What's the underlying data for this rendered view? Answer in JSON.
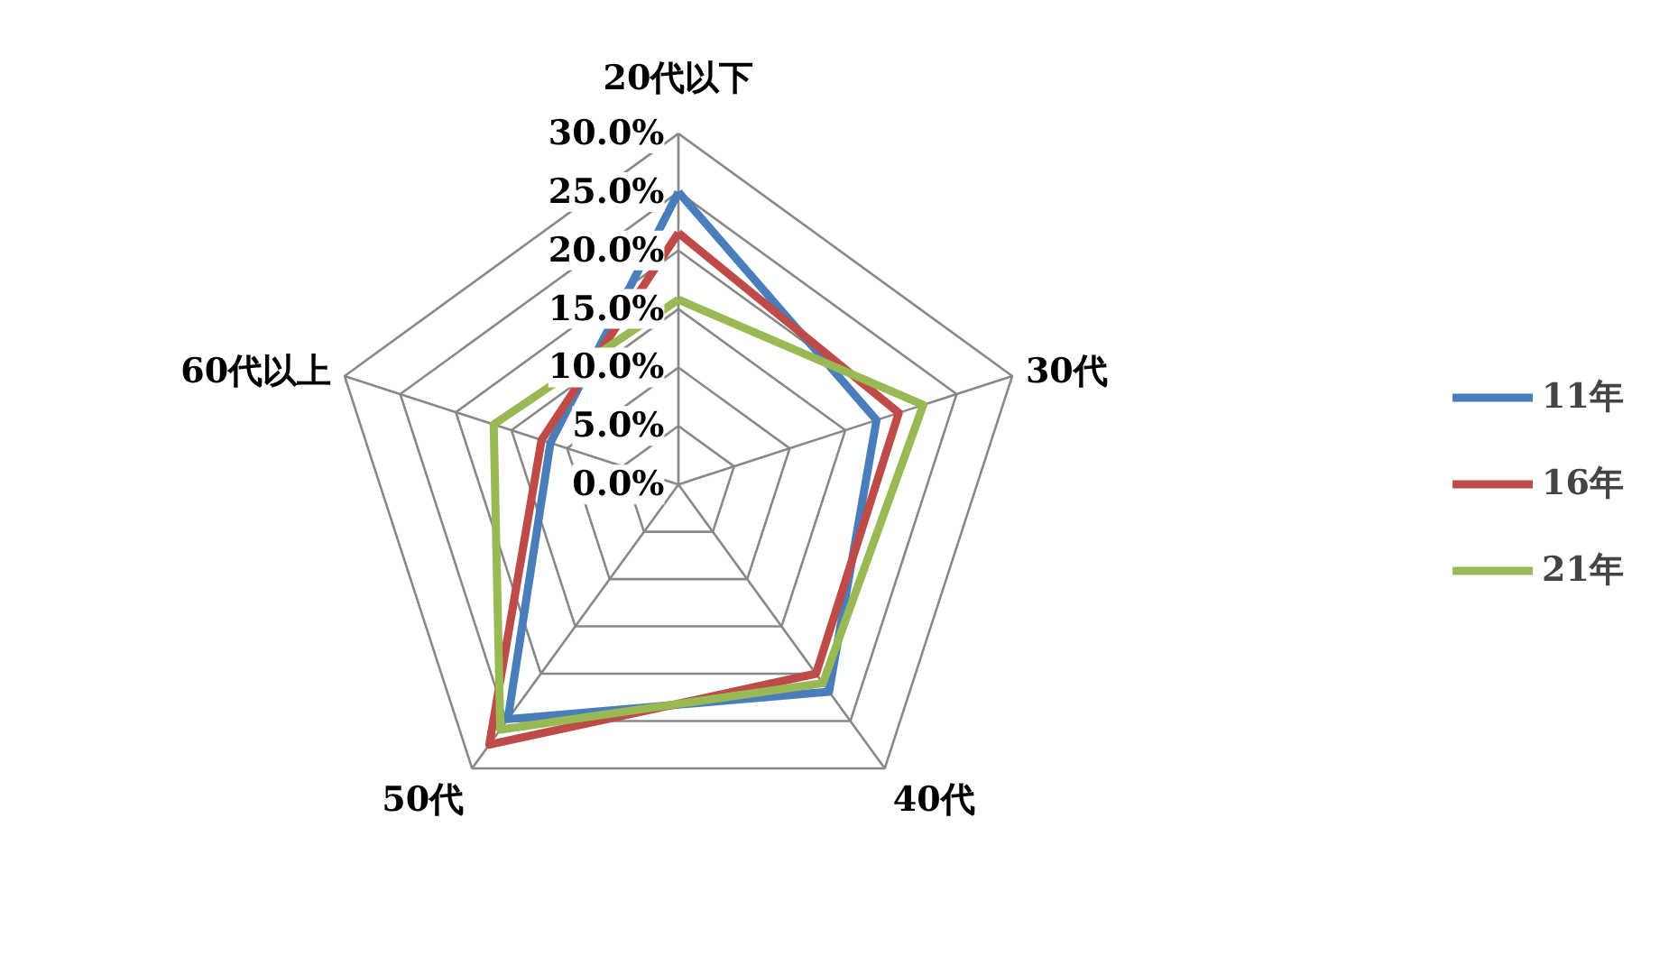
{
  "chart_data": {
    "type": "radar",
    "categories": [
      "20代以下",
      "30代",
      "40代",
      "50代",
      "60代以上"
    ],
    "series": [
      {
        "name": "11年",
        "color": "#4a7ebb",
        "values": [
          25.0,
          17.8,
          21.9,
          24.8,
          11.5
        ]
      },
      {
        "name": "16年",
        "color": "#be4b48",
        "values": [
          21.5,
          19.8,
          20.0,
          27.5,
          12.3
        ]
      },
      {
        "name": "21年",
        "color": "#98b954",
        "values": [
          15.8,
          22.0,
          21.0,
          25.9,
          16.6
        ]
      }
    ],
    "ylim": [
      0,
      30
    ],
    "yticks": [
      {
        "value": 0,
        "label": "0.0%"
      },
      {
        "value": 5,
        "label": "5.0%"
      },
      {
        "value": 10,
        "label": "10.0%"
      },
      {
        "value": 15,
        "label": "15.0%"
      },
      {
        "value": 20,
        "label": "20.0%"
      },
      {
        "value": 25,
        "label": "25.0%"
      },
      {
        "value": 30,
        "label": "30.0%"
      }
    ],
    "legend": "right"
  }
}
